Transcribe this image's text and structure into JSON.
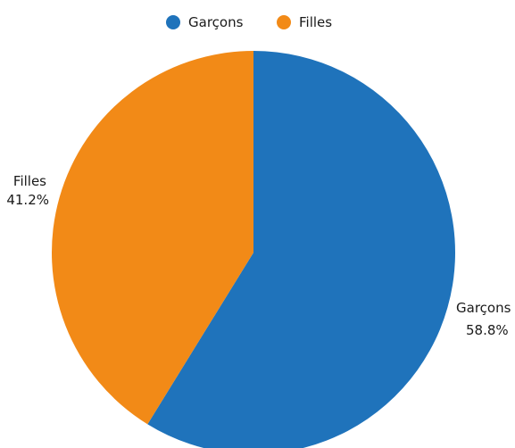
{
  "chart_data": {
    "type": "pie",
    "title": "",
    "legend_position": "top",
    "series": [
      {
        "name": "Garçons",
        "value": 58.8,
        "label": "58.8%",
        "color": "#1f73bb"
      },
      {
        "name": "Filles",
        "value": 41.2,
        "label": "41.2%",
        "color": "#f28a17"
      }
    ]
  }
}
